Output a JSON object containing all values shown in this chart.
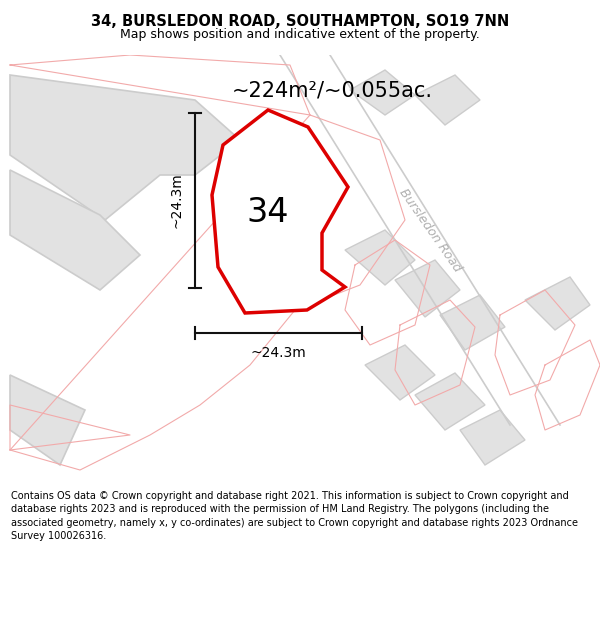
{
  "title_line1": "34, BURSLEDON ROAD, SOUTHAMPTON, SO19 7NN",
  "title_line2": "Map shows position and indicative extent of the property.",
  "area_label": "~224m²/~0.055ac.",
  "number_label": "34",
  "dim_horiz": "~24.3m",
  "dim_vert": "~24.3m",
  "road_label": "Bursledon Road",
  "footer_text": "Contains OS data © Crown copyright and database right 2021. This information is subject to Crown copyright and database rights 2023 and is reproduced with the permission of HM Land Registry. The polygons (including the associated geometry, namely x, y co-ordinates) are subject to Crown copyright and database rights 2023 Ordnance Survey 100026316.",
  "bg_color": "#f0f0f0",
  "polygon_color": "#dd0000",
  "gray_color": "#cccccc",
  "bldg_fill": "#e2e2e2",
  "pink_color": "#f2aaaa",
  "dim_color": "#111111",
  "title_fontsize": 10.5,
  "subtitle_fontsize": 9,
  "area_fontsize": 15,
  "number_fontsize": 24,
  "dim_fontsize": 10,
  "road_fontsize": 9,
  "footer_fontsize": 7.0
}
